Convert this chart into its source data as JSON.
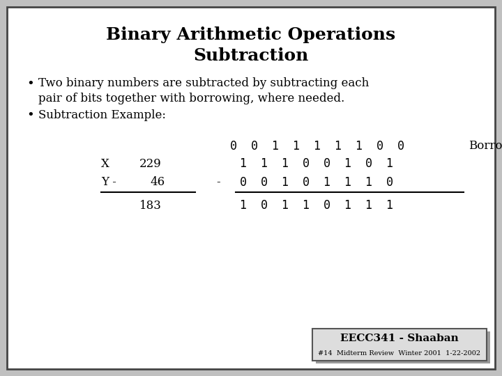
{
  "title_line1": "Binary Arithmetic Operations",
  "title_line2": "Subtraction",
  "bullet1_line1": "Two binary numbers are subtracted by subtracting each",
  "bullet1_line2": "pair of bits together with borrowing, where needed.",
  "bullet2": "Subtraction Example:",
  "borrow_label": "Borrow",
  "borrow_bits": "0  0  1  1  1  1  1  0  0",
  "x_label": "X",
  "x_decimal": "229",
  "x_binary": "1  1  1  0  0  1  0  1",
  "y_label": "Y -",
  "y_decimal": "46",
  "y_binary": "0  0  1  0  1  1  1  0",
  "minus_sign": "-",
  "result_decimal": "183",
  "result_binary": "1  0  1  1  0  1  1  1",
  "footer_main": "EECC341 - Shaaban",
  "footer_sub": "#14  Midterm Review  Winter 2001  1-22-2002",
  "bg_color": "#c0c0c0",
  "slide_bg": "#ffffff",
  "text_color": "#000000",
  "title_fontsize": 18,
  "body_fontsize": 12,
  "mono_fontsize": 12,
  "footer_fontsize": 11,
  "footer_sub_fontsize": 7
}
